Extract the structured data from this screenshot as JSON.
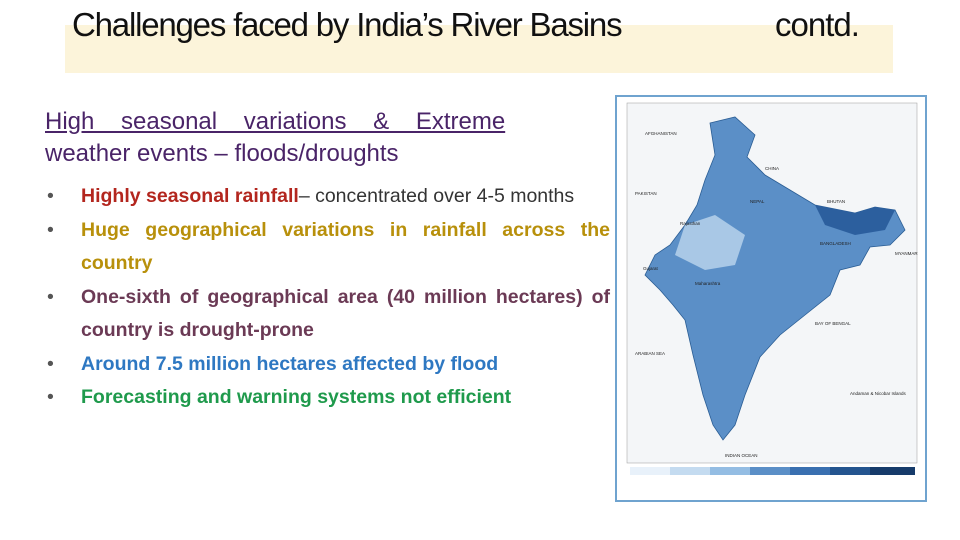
{
  "header": {
    "title": "Challenges faced by India’s River Basins",
    "suffix": "contd."
  },
  "subheading": {
    "line1": "High seasonal variations & Extreme",
    "line2": "weather events – floods/droughts"
  },
  "bullets": [
    {
      "highlight": "Highly seasonal rainfall",
      "rest": "– concentrated over 4-5 months"
    },
    {
      "highlight": "Huge geographical variations in rainfall across the country"
    },
    {
      "highlight": "One-sixth of geographical area (40 million hectares) of country is drought-prone"
    },
    {
      "highlight": "Around 7.5 million hectares affected by flood"
    },
    {
      "highlight": "Forecasting and warning systems not efficient"
    }
  ],
  "map": {
    "labels": [
      "AFGHANISTAN",
      "PAKISTAN",
      "CHINA",
      "NEPAL",
      "BHUTAN",
      "BANGLADESH",
      "MYANMAR",
      "Rajasthan",
      "Gujarat",
      "Maharashtra",
      "ARABIAN SEA",
      "BAY OF BENGAL",
      "INDIAN OCEAN",
      "Andaman & Nicobar Islands"
    ]
  }
}
